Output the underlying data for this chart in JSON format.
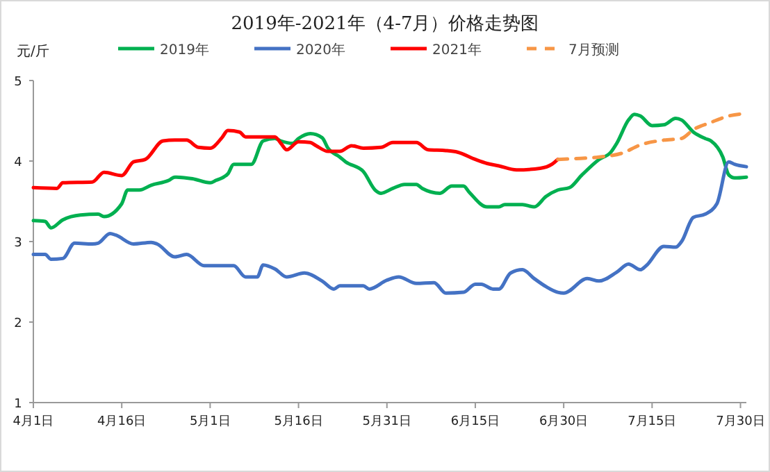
{
  "chart_data": {
    "type": "line",
    "title": "2019年-2021年（4-7月）价格走势图",
    "ylabel": "元/斤",
    "legend": "top",
    "grid": false,
    "marker": "none",
    "xlim": [
      "--04-01",
      "--07-31"
    ],
    "xticks": [
      {
        "value": "--04-01",
        "label": "4月1日"
      },
      {
        "value": "--04-16",
        "label": "4月16日"
      },
      {
        "value": "--05-01",
        "label": "5月1日"
      },
      {
        "value": "--05-16",
        "label": "5月16日"
      },
      {
        "value": "--05-31",
        "label": "5月31日"
      },
      {
        "value": "--06-15",
        "label": "6月15日"
      },
      {
        "value": "--06-30",
        "label": "6月30日"
      },
      {
        "value": "--07-15",
        "label": "7月15日"
      },
      {
        "value": "--07-30",
        "label": "7月30日"
      }
    ],
    "ylim": [
      1,
      5
    ],
    "yticks": [
      1,
      2,
      3,
      4,
      5
    ],
    "series": [
      {
        "name": "2019年",
        "color": "#00b050",
        "line_style": "solid",
        "x": [
          "--04-01",
          "--04-03",
          "--04-04",
          "--04-06",
          "--04-09",
          "--04-12",
          "--04-13",
          "--04-16",
          "--04-17",
          "--04-19",
          "--04-21",
          "--04-24",
          "--04-25",
          "--04-28",
          "--05-01",
          "--05-02",
          "--05-04",
          "--05-05",
          "--05-08",
          "--05-10",
          "--05-12",
          "--05-13",
          "--05-15",
          "--05-16",
          "--05-18",
          "--05-20",
          "--05-21",
          "--05-23",
          "--05-24",
          "--05-27",
          "--05-29",
          "--05-30",
          "--06-01",
          "--06-03",
          "--06-05",
          "--06-06",
          "--06-09",
          "--06-11",
          "--06-13",
          "--06-14",
          "--06-17",
          "--06-19",
          "--06-20",
          "--06-23",
          "--06-25",
          "--06-27",
          "--06-29",
          "--07-01",
          "--07-03",
          "--07-06",
          "--07-08",
          "--07-09",
          "--07-11",
          "--07-12",
          "--07-13",
          "--07-15",
          "--07-17",
          "--07-19",
          "--07-20",
          "--07-22",
          "--07-24",
          "--07-25",
          "--07-27",
          "--07-28",
          "--07-29",
          "--07-31"
        ],
        "values": [
          3.26,
          3.25,
          3.17,
          3.27,
          3.33,
          3.34,
          3.31,
          3.47,
          3.64,
          3.64,
          3.7,
          3.76,
          3.8,
          3.78,
          3.73,
          3.76,
          3.84,
          3.96,
          3.96,
          4.25,
          4.28,
          4.25,
          4.22,
          4.28,
          4.34,
          4.29,
          4.16,
          4.05,
          3.99,
          3.87,
          3.64,
          3.6,
          3.66,
          3.71,
          3.71,
          3.66,
          3.6,
          3.69,
          3.69,
          3.61,
          3.43,
          3.43,
          3.46,
          3.46,
          3.43,
          3.56,
          3.64,
          3.67,
          3.82,
          4.02,
          4.11,
          4.22,
          4.51,
          4.58,
          4.56,
          4.44,
          4.45,
          4.53,
          4.51,
          4.36,
          4.28,
          4.25,
          4.05,
          3.83,
          3.79,
          3.8
        ]
      },
      {
        "name": "2020年",
        "color": "#4472c4",
        "line_style": "solid",
        "x": [
          "--04-01",
          "--04-03",
          "--04-04",
          "--04-06",
          "--04-08",
          "--04-11",
          "--04-12",
          "--04-14",
          "--04-15",
          "--04-18",
          "--04-21",
          "--04-22",
          "--04-25",
          "--04-27",
          "--04-30",
          "--05-05",
          "--05-07",
          "--05-09",
          "--05-10",
          "--05-12",
          "--05-14",
          "--05-17",
          "--05-20",
          "--05-22",
          "--05-23",
          "--05-27",
          "--05-28",
          "--05-31",
          "--06-02",
          "--06-05",
          "--06-08",
          "--06-10",
          "--06-13",
          "--06-15",
          "--06-16",
          "--06-18",
          "--06-19",
          "--06-21",
          "--06-23",
          "--06-25",
          "--06-27",
          "--06-29",
          "--06-30",
          "--07-04",
          "--07-06",
          "--07-09",
          "--07-11",
          "--07-13",
          "--07-14",
          "--07-17",
          "--07-19",
          "--07-20",
          "--07-22",
          "--07-24",
          "--07-26",
          "--07-28",
          "--07-29",
          "--07-31"
        ],
        "values": [
          2.84,
          2.84,
          2.78,
          2.79,
          2.98,
          2.97,
          2.98,
          3.1,
          3.08,
          2.97,
          2.99,
          2.97,
          2.81,
          2.84,
          2.7,
          2.7,
          2.56,
          2.56,
          2.71,
          2.66,
          2.56,
          2.61,
          2.51,
          2.41,
          2.45,
          2.45,
          2.41,
          2.52,
          2.56,
          2.48,
          2.49,
          2.36,
          2.37,
          2.47,
          2.47,
          2.41,
          2.41,
          2.61,
          2.65,
          2.54,
          2.44,
          2.37,
          2.36,
          2.54,
          2.51,
          2.62,
          2.72,
          2.65,
          2.7,
          2.94,
          2.93,
          3.0,
          3.3,
          3.34,
          3.47,
          3.99,
          3.96,
          3.93
        ]
      },
      {
        "name": "2021年",
        "color": "#ff0000",
        "line_style": "solid",
        "x": [
          "--04-01",
          "--04-05",
          "--04-06",
          "--04-11",
          "--04-13",
          "--04-16",
          "--04-18",
          "--04-20",
          "--04-23",
          "--04-25",
          "--04-27",
          "--04-29",
          "--05-01",
          "--05-03",
          "--05-04",
          "--05-06",
          "--05-07",
          "--05-12",
          "--05-13",
          "--05-14",
          "--05-16",
          "--05-18",
          "--05-19",
          "--05-21",
          "--05-23",
          "--05-25",
          "--05-27",
          "--05-30",
          "--06-01",
          "--06-05",
          "--06-07",
          "--06-10",
          "--06-12",
          "--06-15",
          "--06-17",
          "--06-19",
          "--06-22",
          "--06-26",
          "--06-28",
          "--06-29"
        ],
        "values": [
          3.67,
          3.66,
          3.73,
          3.74,
          3.86,
          3.82,
          3.99,
          4.02,
          4.25,
          4.26,
          4.26,
          4.17,
          4.16,
          4.29,
          4.38,
          4.36,
          4.3,
          4.3,
          4.22,
          4.14,
          4.24,
          4.23,
          4.19,
          4.12,
          4.12,
          4.19,
          4.16,
          4.17,
          4.23,
          4.23,
          4.14,
          4.13,
          4.11,
          4.02,
          3.97,
          3.94,
          3.89,
          3.91,
          3.96,
          4.02
        ]
      },
      {
        "name": "7月预测",
        "color": "#f79646",
        "line_style": "dashed",
        "x": [
          "--06-29",
          "--07-02",
          "--07-06",
          "--07-10",
          "--07-13",
          "--07-17",
          "--07-20",
          "--07-22",
          "--07-25",
          "--07-28",
          "--07-31"
        ],
        "values": [
          4.02,
          4.03,
          4.05,
          4.1,
          4.2,
          4.26,
          4.28,
          4.39,
          4.48,
          4.56,
          4.59
        ]
      }
    ]
  }
}
